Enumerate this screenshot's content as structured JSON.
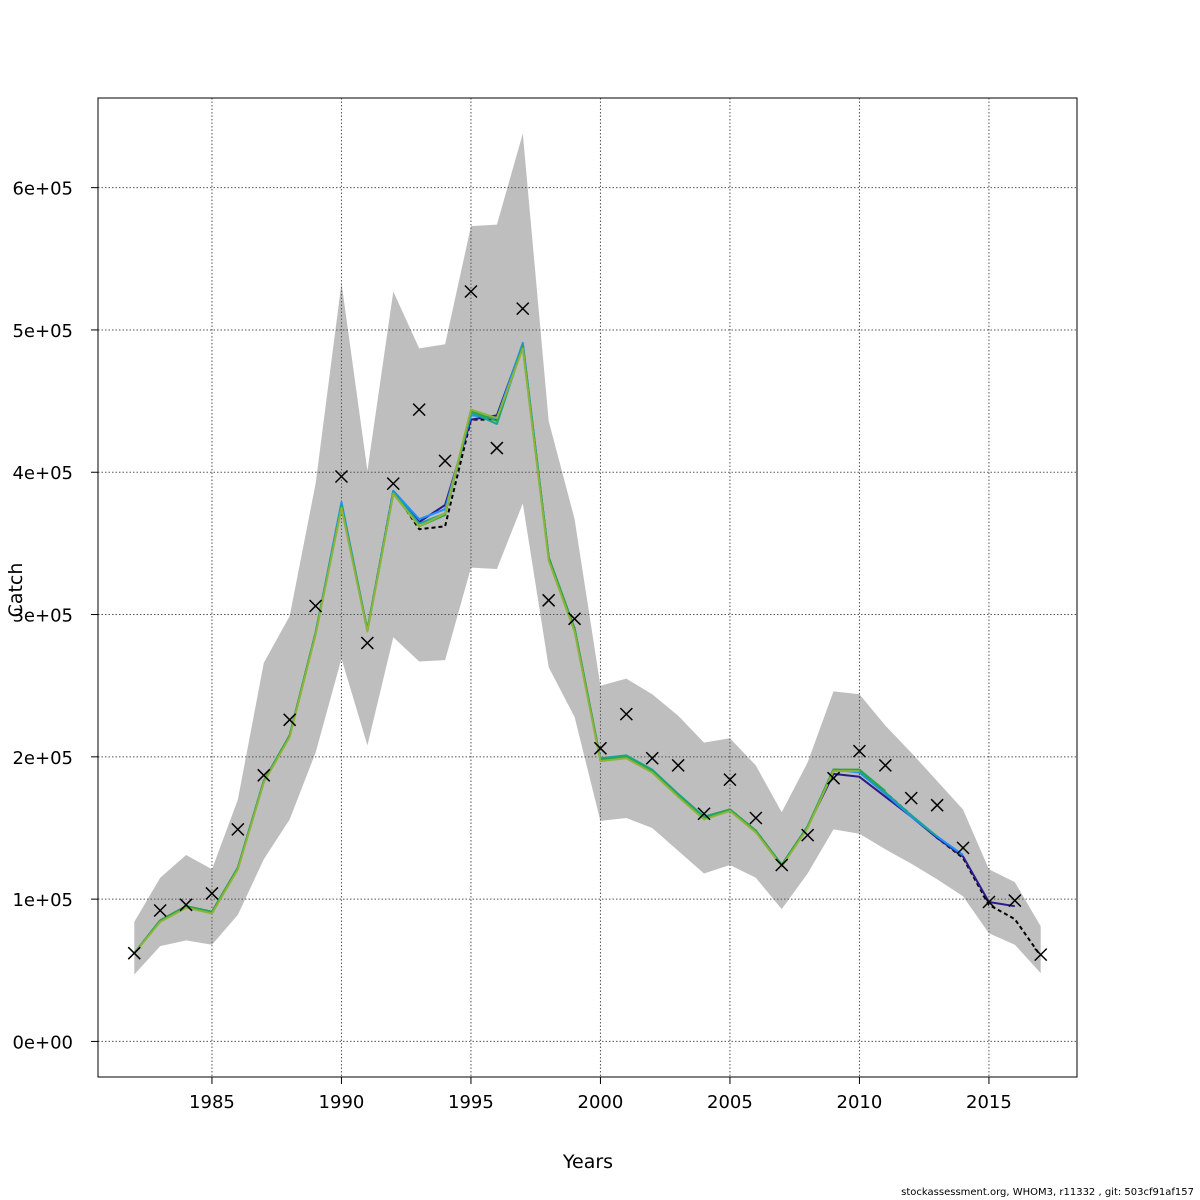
{
  "footer": "stockassessment.org, WHOM3, r11332 , git: 503cf91af157",
  "chart_data": {
    "type": "line",
    "title": "",
    "xlabel": "Years",
    "ylabel": "Catch",
    "xlim": [
      1980.6,
      2018.4
    ],
    "ylim": [
      -25000,
      663000
    ],
    "xticks": [
      1985,
      1990,
      1995,
      2000,
      2005,
      2010,
      2015
    ],
    "xtick_labels": [
      "1985",
      "1990",
      "1995",
      "2000",
      "2005",
      "2010",
      "2015"
    ],
    "yticks": [
      0,
      100000,
      200000,
      300000,
      400000,
      500000,
      600000
    ],
    "ytick_labels": [
      "0e+00",
      "1e+05",
      "2e+05",
      "3e+05",
      "4e+05",
      "5e+05",
      "6e+05"
    ],
    "grid": true,
    "colors": {
      "band": "#bebebe",
      "grid": "#555555",
      "series": [
        "#000000",
        "#2b1a8c",
        "#1e90ff",
        "#1aa39a",
        "#28a745",
        "#8db33a"
      ]
    },
    "x": [
      1982,
      1983,
      1984,
      1985,
      1986,
      1987,
      1988,
      1989,
      1990,
      1991,
      1992,
      1993,
      1994,
      1995,
      1996,
      1997,
      1998,
      1999,
      2000,
      2001,
      2002,
      2003,
      2004,
      2005,
      2006,
      2007,
      2008,
      2009,
      2010,
      2011,
      2012,
      2013,
      2014,
      2015,
      2016,
      2017
    ],
    "band_upper": [
      84000,
      115000,
      131000,
      121000,
      170000,
      266000,
      299000,
      392000,
      533000,
      401000,
      527000,
      487000,
      490000,
      573000,
      574000,
      638000,
      436000,
      367000,
      250000,
      255000,
      244000,
      229000,
      210000,
      213000,
      194000,
      161000,
      196000,
      246000,
      244000,
      222000,
      203000,
      183000,
      163000,
      121000,
      112000,
      81000
    ],
    "band_lower": [
      47000,
      67000,
      71000,
      68000,
      89000,
      128000,
      156000,
      203000,
      269000,
      208000,
      284000,
      267000,
      268000,
      333000,
      332000,
      378000,
      263000,
      228000,
      155000,
      157000,
      150000,
      134000,
      118000,
      124000,
      115000,
      93000,
      118000,
      149000,
      146000,
      135000,
      125000,
      114000,
      102000,
      76000,
      68000,
      48000
    ],
    "series": [
      {
        "values": [
          62000,
          85000,
          95000,
          91000,
          122000,
          183000,
          215000,
          287000,
          376000,
          289000,
          387000,
          360000,
          362000,
          437000,
          437000,
          488000,
          340000,
          290000,
          198000,
          200000,
          190000,
          173000,
          157000,
          163000,
          148000,
          124000,
          151000,
          191000,
          190000,
          175000,
          159000,
          143000,
          129000,
          96000,
          86000,
          60000
        ]
      },
      {
        "values": [
          62000,
          85000,
          95000,
          91000,
          122000,
          183000,
          215000,
          287000,
          376000,
          289000,
          386000,
          365000,
          377000,
          437000,
          440000,
          490000,
          340000,
          290000,
          198000,
          200000,
          190000,
          173000,
          157000,
          163000,
          148000,
          124000,
          151000,
          188000,
          186000,
          172000,
          158000,
          143000,
          130000,
          98000,
          95000,
          null
        ]
      },
      {
        "values": [
          62000,
          85000,
          95000,
          91000,
          122000,
          183000,
          215000,
          287000,
          379000,
          289000,
          387000,
          367000,
          374000,
          440000,
          438000,
          491000,
          340000,
          290000,
          198000,
          200000,
          190000,
          173000,
          157000,
          163000,
          148000,
          124000,
          151000,
          191000,
          189000,
          174000,
          158000,
          144000,
          131000,
          null,
          null,
          null
        ]
      },
      {
        "values": [
          62000,
          85000,
          95000,
          91000,
          122000,
          183000,
          215000,
          287000,
          377000,
          289000,
          386000,
          364000,
          371000,
          442000,
          434000,
          489000,
          340000,
          290000,
          199000,
          201000,
          191000,
          174000,
          158000,
          163000,
          148000,
          124000,
          151000,
          191000,
          190000,
          175000,
          159000,
          144000,
          null,
          null,
          null,
          null
        ]
      },
      {
        "values": [
          62000,
          85000,
          95000,
          91000,
          122000,
          183000,
          215000,
          287000,
          376000,
          289000,
          385000,
          362000,
          370000,
          443000,
          436000,
          489000,
          340000,
          290000,
          198000,
          200000,
          190000,
          173000,
          157000,
          163000,
          148000,
          124000,
          151000,
          191000,
          191000,
          176000,
          null,
          null,
          null,
          null,
          null,
          null
        ]
      },
      {
        "values": [
          62000,
          84000,
          94000,
          90000,
          121000,
          182000,
          214000,
          286000,
          375000,
          288000,
          385000,
          362000,
          371000,
          444000,
          438000,
          487000,
          338000,
          288000,
          197000,
          199000,
          189000,
          172000,
          156000,
          162000,
          147000,
          123000,
          150000,
          190000,
          190000,
          null,
          null,
          null,
          null,
          null,
          null,
          null
        ]
      }
    ],
    "observed_marker": "cross",
    "observed": [
      62000,
      92000,
      96000,
      104000,
      149000,
      187000,
      226000,
      306000,
      397000,
      280000,
      392000,
      444000,
      408000,
      527000,
      417000,
      515000,
      310000,
      297000,
      206000,
      230000,
      199000,
      194000,
      160000,
      184000,
      157000,
      124000,
      145000,
      185000,
      204000,
      194000,
      171000,
      166000,
      136000,
      98000,
      99000,
      61000
    ]
  }
}
